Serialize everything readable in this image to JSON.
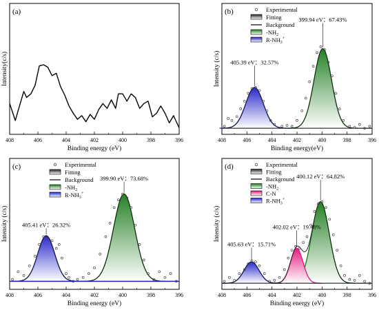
{
  "chart_data": [
    {
      "panel": "(a)",
      "type": "line",
      "xlabel": "Binding energy (eV)",
      "ylabel": "Intensity(c/s)",
      "xlim": [
        408,
        396
      ],
      "xticks": [
        408,
        406,
        404,
        402,
        400,
        398,
        396
      ],
      "ylim": [
        0,
        1
      ],
      "legend": [],
      "annotations": [],
      "series": [
        {
          "kind": "line",
          "x": [
            408.0,
            407.6,
            407.3,
            407.0,
            406.8,
            406.5,
            406.2,
            405.9,
            405.6,
            405.3,
            405.0,
            404.7,
            404.4,
            404.1,
            403.8,
            403.5,
            403.2,
            402.9,
            402.6,
            402.3,
            402.0,
            401.7,
            401.4,
            401.1,
            400.8,
            400.5,
            400.3,
            400.0,
            399.7,
            399.4,
            399.1,
            398.8,
            398.5,
            398.2,
            397.9,
            397.6,
            397.3,
            397.0,
            396.7,
            396.4,
            396.0
          ],
          "y": [
            0.22,
            0.08,
            0.2,
            0.32,
            0.27,
            0.3,
            0.37,
            0.53,
            0.54,
            0.52,
            0.45,
            0.47,
            0.36,
            0.29,
            0.2,
            0.14,
            0.09,
            0.12,
            0.07,
            0.13,
            0.09,
            0.17,
            0.22,
            0.18,
            0.25,
            0.18,
            0.3,
            0.3,
            0.24,
            0.3,
            0.27,
            0.18,
            0.22,
            0.24,
            0.11,
            0.14,
            0.2,
            0.14,
            0.06,
            0.12,
            0.02
          ],
          "color": "#000000"
        }
      ]
    },
    {
      "panel": "(b)",
      "type": "line",
      "xlabel": "Binding energy(eV)",
      "ylabel": "Intensity (c/s)",
      "xlim": [
        408,
        396
      ],
      "xticks": [
        408,
        406,
        404,
        402,
        400,
        398,
        396
      ],
      "ylim": [
        0,
        1
      ],
      "legend": [
        {
          "label": "Experimental",
          "symbol": "circle"
        },
        {
          "label": "Fitting",
          "symbol": "box-gray"
        },
        {
          "label": "Background",
          "symbol": "line"
        },
        {
          "label": "-NH",
          "sub": "2",
          "sup": "",
          "symbol": "box-green"
        },
        {
          "label": "R-NH",
          "sub": "3",
          "sup": "+",
          "symbol": "box-blue"
        }
      ],
      "annotations": [
        {
          "text": "399.94 eV：67.43%",
          "x": 399.94,
          "y": 1.12
        },
        {
          "text": "405.39 eV：32.57%",
          "x": 405.39,
          "y": 0.68
        }
      ],
      "peaks": [
        {
          "name": "-NH2",
          "center": 399.94,
          "height": 0.82,
          "sigma": 0.7,
          "color": "#1a7a1a"
        },
        {
          "name": "R-NH3+",
          "center": 405.39,
          "height": 0.42,
          "sigma": 0.7,
          "color": "#1f1fc8"
        }
      ],
      "background": 0.02,
      "experimental": {
        "x": [
          407.8,
          407.5,
          407.2,
          406.8,
          406.5,
          406.2,
          405.9,
          405.6,
          405.3,
          405.0,
          404.7,
          404.4,
          404.1,
          403.8,
          403.2,
          402.8,
          402.4,
          402.0,
          401.6,
          401.3,
          401.0,
          400.7,
          400.4,
          400.1,
          399.8,
          399.5,
          399.2,
          398.9,
          398.6,
          398.3,
          397.8,
          397.4,
          397.0,
          396.6,
          396.2
        ],
        "y": [
          0.04,
          0.12,
          0.1,
          0.14,
          0.22,
          0.3,
          0.38,
          0.43,
          0.44,
          0.41,
          0.3,
          0.2,
          0.1,
          0.06,
          0.04,
          0.05,
          0.04,
          0.1,
          0.2,
          0.33,
          0.5,
          0.66,
          0.8,
          0.86,
          0.83,
          0.7,
          0.56,
          0.38,
          0.22,
          0.1,
          0.04,
          0.03,
          0.06,
          0.02,
          0.04
        ]
      }
    },
    {
      "panel": "(c)",
      "type": "line",
      "xlabel": "Binding energy (eV)",
      "ylabel": "Intensity (c/s)",
      "xlim": [
        408,
        396
      ],
      "xticks": [
        408,
        406,
        404,
        402,
        400,
        398,
        396
      ],
      "ylim": [
        0,
        1
      ],
      "legend": [
        {
          "label": "Experimental",
          "symbol": "circle"
        },
        {
          "label": "Fitting",
          "symbol": "box-gray"
        },
        {
          "label": "Background",
          "symbol": "line"
        },
        {
          "label": "-NH",
          "sub": "2",
          "sup": "",
          "symbol": "box-green"
        },
        {
          "label": "R-NH",
          "sub": "3",
          "sup": "+",
          "symbol": "box-blue"
        }
      ],
      "annotations": [
        {
          "text": "399.90 eV：73.68%",
          "x": 399.9,
          "y": 1.08
        },
        {
          "text": "405.41 eV：26.32%",
          "x": 405.41,
          "y": 0.6
        }
      ],
      "peaks": [
        {
          "name": "-NH2",
          "center": 399.9,
          "height": 0.9,
          "sigma": 0.75,
          "color": "#1a7a1a"
        },
        {
          "name": "R-NH3+",
          "center": 405.41,
          "height": 0.47,
          "sigma": 0.6,
          "color": "#1f1fc8"
        }
      ],
      "background": 0.04,
      "experimental": {
        "x": [
          407.8,
          407.4,
          407.0,
          406.6,
          406.2,
          405.9,
          405.6,
          405.3,
          405.0,
          404.7,
          404.5,
          404.3,
          404.0,
          403.8,
          403.5,
          403.2,
          402.8,
          402.4,
          402.0,
          401.6,
          401.2,
          400.9,
          400.6,
          400.3,
          400.0,
          399.7,
          399.4,
          399.1,
          398.8,
          398.5,
          398.2,
          397.8,
          397.4,
          397.0,
          396.6,
          396.2
        ],
        "y": [
          0.06,
          0.14,
          0.1,
          0.2,
          0.3,
          0.42,
          0.5,
          0.48,
          0.46,
          0.38,
          0.42,
          0.28,
          0.12,
          0.08,
          0.04,
          0.06,
          0.08,
          0.12,
          0.18,
          0.32,
          0.5,
          0.64,
          0.8,
          0.88,
          0.94,
          0.9,
          0.8,
          0.62,
          0.42,
          0.26,
          0.12,
          0.06,
          0.14,
          0.08,
          0.12,
          0.04
        ]
      }
    },
    {
      "panel": "(d)",
      "type": "line",
      "xlabel": "Binding energy (eV)",
      "ylabel": "Intensity (c/s)",
      "xlim": [
        408,
        396
      ],
      "xticks": [
        408,
        406,
        404,
        402,
        400,
        398,
        396
      ],
      "ylim": [
        0,
        1
      ],
      "legend": [
        {
          "label": "Experimental",
          "symbol": "circle"
        },
        {
          "label": "Fitting",
          "symbol": "box-gray"
        },
        {
          "label": "Background",
          "symbol": "line"
        },
        {
          "label": "-NH",
          "sub": "2",
          "sup": "",
          "symbol": "box-green"
        },
        {
          "label": "C-N",
          "sub": "",
          "sup": "",
          "symbol": "box-pink"
        },
        {
          "label": "R-NH",
          "sub": "3",
          "sup": "+",
          "symbol": "box-blue"
        }
      ],
      "annotations": [
        {
          "text": "400.12 eV：64.82%",
          "x": 400.12,
          "y": 1.1
        },
        {
          "text": "402.02 eV：19.48%",
          "x": 402.02,
          "y": 0.58
        },
        {
          "text": "405.63 eV：15.71%",
          "x": 405.63,
          "y": 0.4
        }
      ],
      "peaks": [
        {
          "name": "-NH2",
          "center": 400.12,
          "height": 0.84,
          "sigma": 0.7,
          "color": "#1a7a1a"
        },
        {
          "name": "C-N",
          "center": 402.02,
          "height": 0.36,
          "sigma": 0.5,
          "color": "#e0147a"
        },
        {
          "name": "R-NH3+",
          "center": 405.63,
          "height": 0.22,
          "sigma": 0.6,
          "color": "#1f1fc8"
        }
      ],
      "background": 0.02,
      "experimental": {
        "x": [
          407.8,
          407.4,
          407.0,
          406.6,
          406.2,
          405.9,
          405.6,
          405.3,
          405.0,
          404.6,
          404.2,
          403.8,
          403.4,
          403.0,
          402.7,
          402.4,
          402.1,
          401.8,
          401.5,
          401.2,
          400.9,
          400.6,
          400.3,
          400.0,
          399.7,
          399.4,
          399.1,
          398.8,
          398.5,
          398.2,
          397.8,
          397.4,
          397.0,
          396.6,
          396.2
        ],
        "y": [
          0.04,
          0.08,
          0.05,
          0.12,
          0.16,
          0.22,
          0.25,
          0.24,
          0.2,
          0.12,
          0.04,
          0.05,
          0.08,
          0.16,
          0.28,
          0.36,
          0.4,
          0.38,
          0.44,
          0.5,
          0.62,
          0.76,
          0.84,
          0.86,
          0.8,
          0.68,
          0.52,
          0.36,
          0.2,
          0.1,
          0.06,
          0.05,
          0.1,
          0.04,
          0.02
        ]
      }
    }
  ]
}
